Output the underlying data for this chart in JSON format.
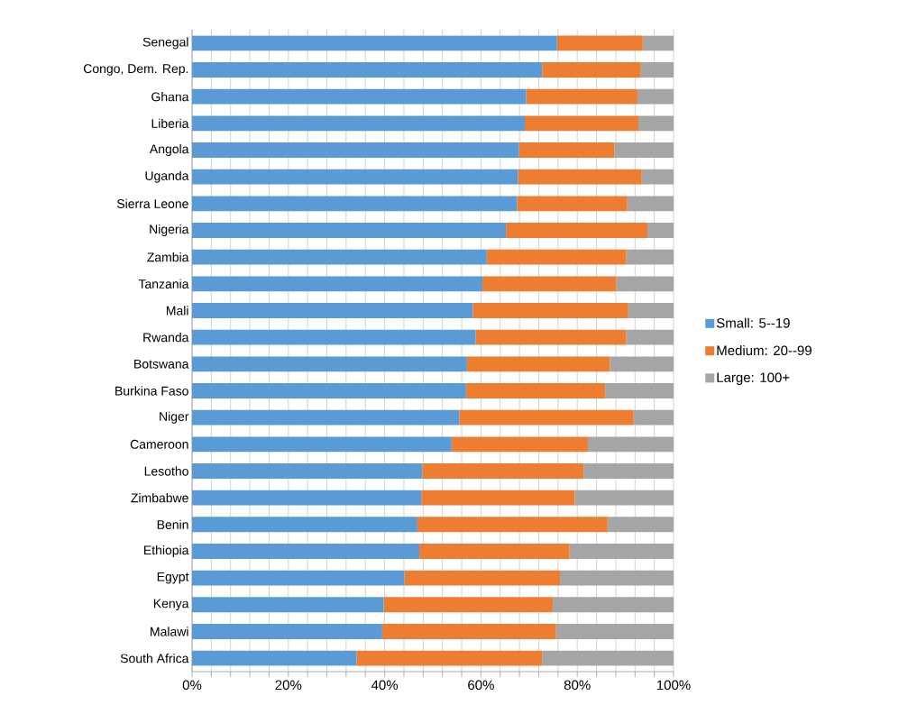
{
  "chart_data": {
    "type": "bar",
    "orientation": "horizontal",
    "stacked": true,
    "categories": [
      "Senegal",
      "Congo, Dem. Rep.",
      "Ghana",
      "Liberia",
      "Angola",
      "Uganda",
      "Sierra Leone",
      "Nigeria",
      "Zambia",
      "Tanzania",
      "Mali",
      "Rwanda",
      "Botswana",
      "Burkina Faso",
      "Niger",
      "Cameroon",
      "Lesotho",
      "Zimbabwe",
      "Benin",
      "Ethiopia",
      "Egypt",
      "Kenya",
      "Malawi",
      "South Africa"
    ],
    "series": [
      {
        "name": "Small:   5--19",
        "color": "#5b9bd5",
        "values": [
          75.8,
          72.7,
          69.4,
          69.1,
          67.9,
          67.7,
          67.5,
          65.2,
          61.2,
          60.3,
          58.3,
          58.9,
          57.1,
          56.9,
          55.5,
          53.9,
          47.8,
          47.6,
          46.8,
          47.2,
          44.1,
          39.8,
          39.5,
          34.2
        ]
      },
      {
        "name": "Medium: 20--99",
        "color": "#ed7d31",
        "values": [
          17.8,
          20.5,
          23.1,
          23.6,
          19.8,
          25.7,
          22.9,
          29.4,
          29.0,
          27.8,
          32.3,
          31.3,
          29.7,
          28.9,
          36.2,
          28.3,
          33.5,
          31.9,
          39.5,
          31.2,
          32.3,
          35.1,
          36.1,
          38.5
        ]
      },
      {
        "name": "Large: 100+",
        "color": "#a5a5a5",
        "values": [
          6.4,
          6.8,
          7.5,
          7.3,
          12.3,
          6.6,
          9.6,
          5.4,
          9.8,
          11.9,
          9.4,
          9.8,
          13.2,
          14.2,
          8.3,
          17.8,
          18.7,
          20.5,
          13.7,
          21.6,
          23.6,
          25.1,
          24.4,
          27.3
        ]
      }
    ],
    "xlim": [
      0,
      100
    ],
    "xticks": [
      {
        "value": 0,
        "label": "0%"
      },
      {
        "value": 4,
        "label": null
      },
      {
        "value": 8,
        "label": null
      },
      {
        "value": 12,
        "label": null
      },
      {
        "value": 16,
        "label": null
      },
      {
        "value": 20,
        "label": "20%"
      },
      {
        "value": 24,
        "label": null
      },
      {
        "value": 28,
        "label": null
      },
      {
        "value": 32,
        "label": null
      },
      {
        "value": 36,
        "label": null
      },
      {
        "value": 40,
        "label": "40%"
      },
      {
        "value": 44,
        "label": null
      },
      {
        "value": 48,
        "label": null
      },
      {
        "value": 52,
        "label": null
      },
      {
        "value": 56,
        "label": null
      },
      {
        "value": 60,
        "label": "60%"
      },
      {
        "value": 64,
        "label": null
      },
      {
        "value": 68,
        "label": null
      },
      {
        "value": 72,
        "label": null
      },
      {
        "value": 76,
        "label": null
      },
      {
        "value": 80,
        "label": "80%"
      },
      {
        "value": 84,
        "label": null
      },
      {
        "value": 88,
        "label": null
      },
      {
        "value": 92,
        "label": null
      },
      {
        "value": 96,
        "label": null
      },
      {
        "value": 100,
        "label": "100%"
      }
    ],
    "grid": "x",
    "legend": "right"
  }
}
